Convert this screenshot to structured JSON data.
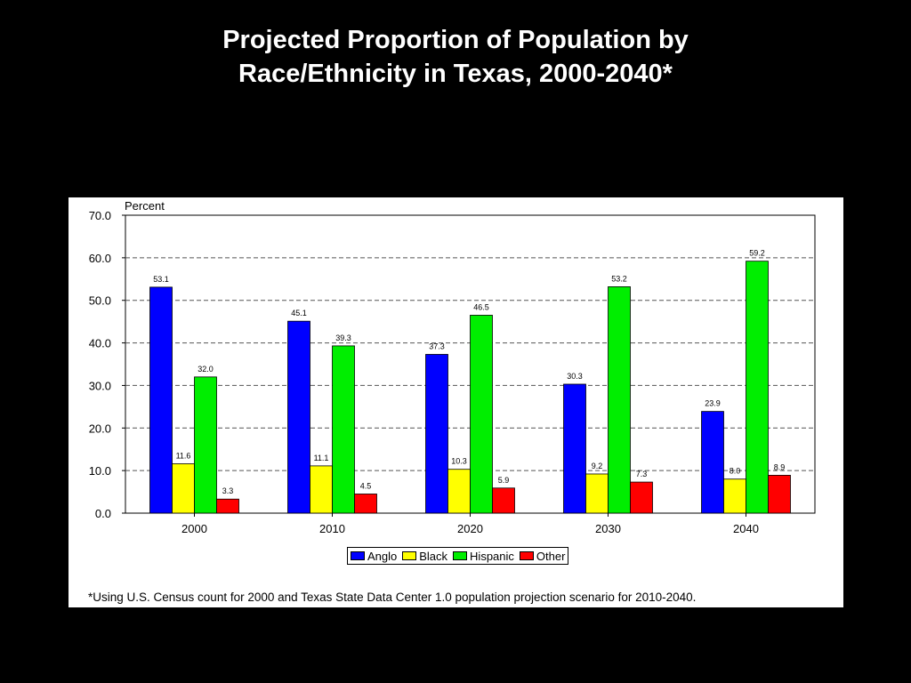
{
  "slide": {
    "title_line1": "Projected Proportion of Population by",
    "title_line2": "Race/Ethnicity in Texas, 2000-2040*",
    "footnote": "*Using U.S. Census count for 2000 and Texas State Data Center 1.0 population projection scenario for 2010-2040."
  },
  "chart_data": {
    "type": "bar",
    "title": "",
    "ylabel": "Percent",
    "xlabel": "",
    "categories": [
      "2000",
      "2010",
      "2020",
      "2030",
      "2040"
    ],
    "ylim": [
      0,
      70
    ],
    "yticks": [
      "0.0",
      "10.0",
      "20.0",
      "30.0",
      "40.0",
      "50.0",
      "60.0",
      "70.0"
    ],
    "grid": "horizontal dashed",
    "legend_position": "bottom-center",
    "series": [
      {
        "name": "Anglo",
        "color": "#0000ff",
        "values": [
          53.1,
          45.1,
          37.3,
          30.3,
          23.9
        ],
        "labels": [
          "53.1",
          "45.1",
          "37.3",
          "30.3",
          "23.9"
        ]
      },
      {
        "name": "Black",
        "color": "#ffff00",
        "values": [
          11.6,
          11.1,
          10.3,
          9.2,
          8.0
        ],
        "labels": [
          "11.6",
          "11.1",
          "10.3",
          "9.2",
          "8.0"
        ]
      },
      {
        "name": "Hispanic",
        "color": "#00ee00",
        "values": [
          32.0,
          39.3,
          46.5,
          53.2,
          59.2
        ],
        "labels": [
          "32.0",
          "39.3",
          "46.5",
          "53.2",
          "59.2"
        ]
      },
      {
        "name": "Other",
        "color": "#ff0000",
        "values": [
          3.3,
          4.5,
          5.9,
          7.3,
          8.9
        ],
        "labels": [
          "3.3",
          "4.5",
          "5.9",
          "7.3",
          "8.9"
        ]
      }
    ]
  }
}
